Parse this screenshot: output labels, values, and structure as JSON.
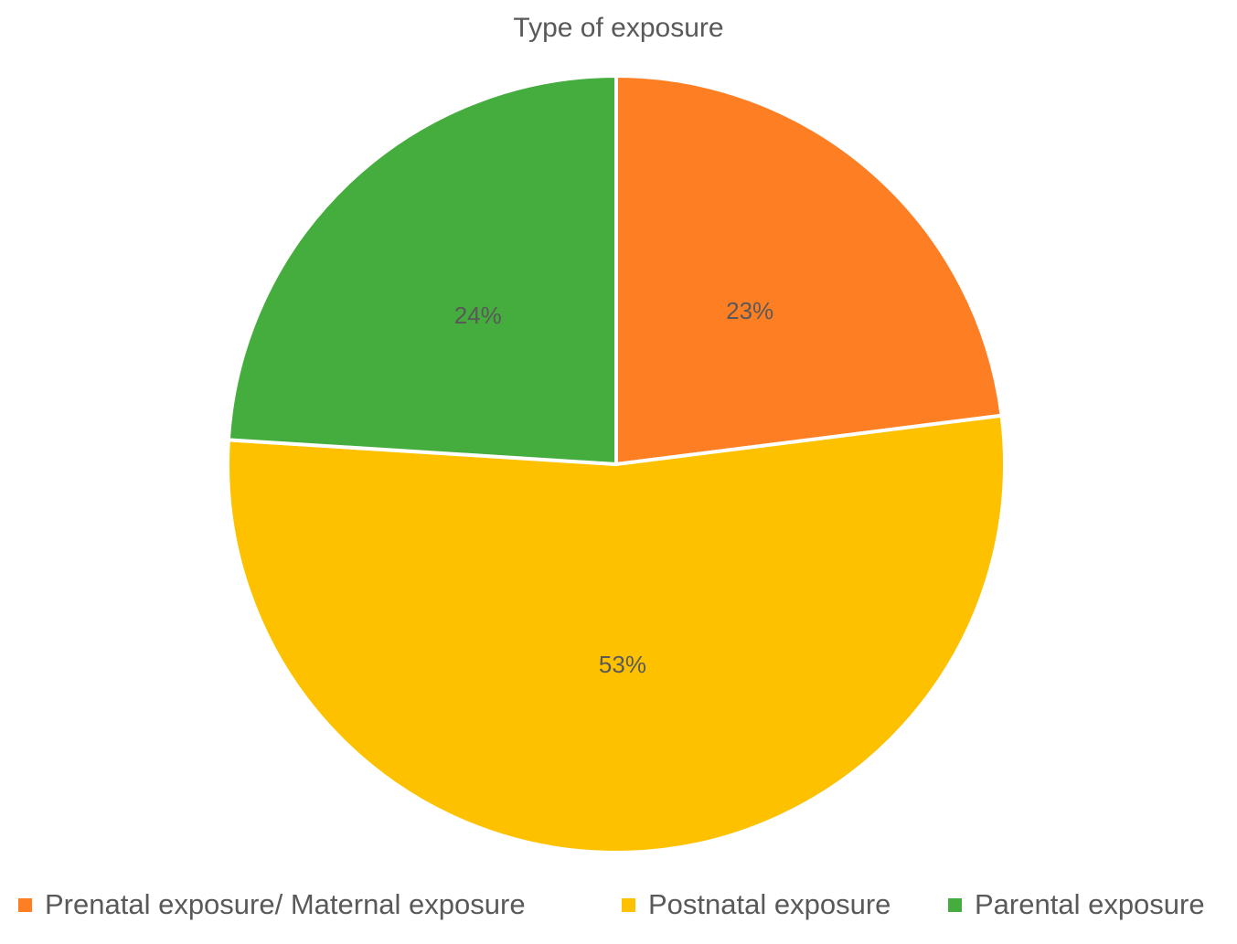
{
  "chart_data": {
    "type": "pie",
    "title": "Type of exposure",
    "categories": [
      "Prenatal exposure/ Maternal exposure",
      "Postnatal exposure",
      "Parental exposure"
    ],
    "values": [
      23,
      53,
      24
    ],
    "data_labels": [
      "23%",
      "53%",
      "24%"
    ],
    "colors": [
      "#FE7F23",
      "#FDC100",
      "#45AD3D"
    ],
    "start_angle_deg": 0,
    "direction": "clockwise",
    "legend_position": "bottom"
  }
}
